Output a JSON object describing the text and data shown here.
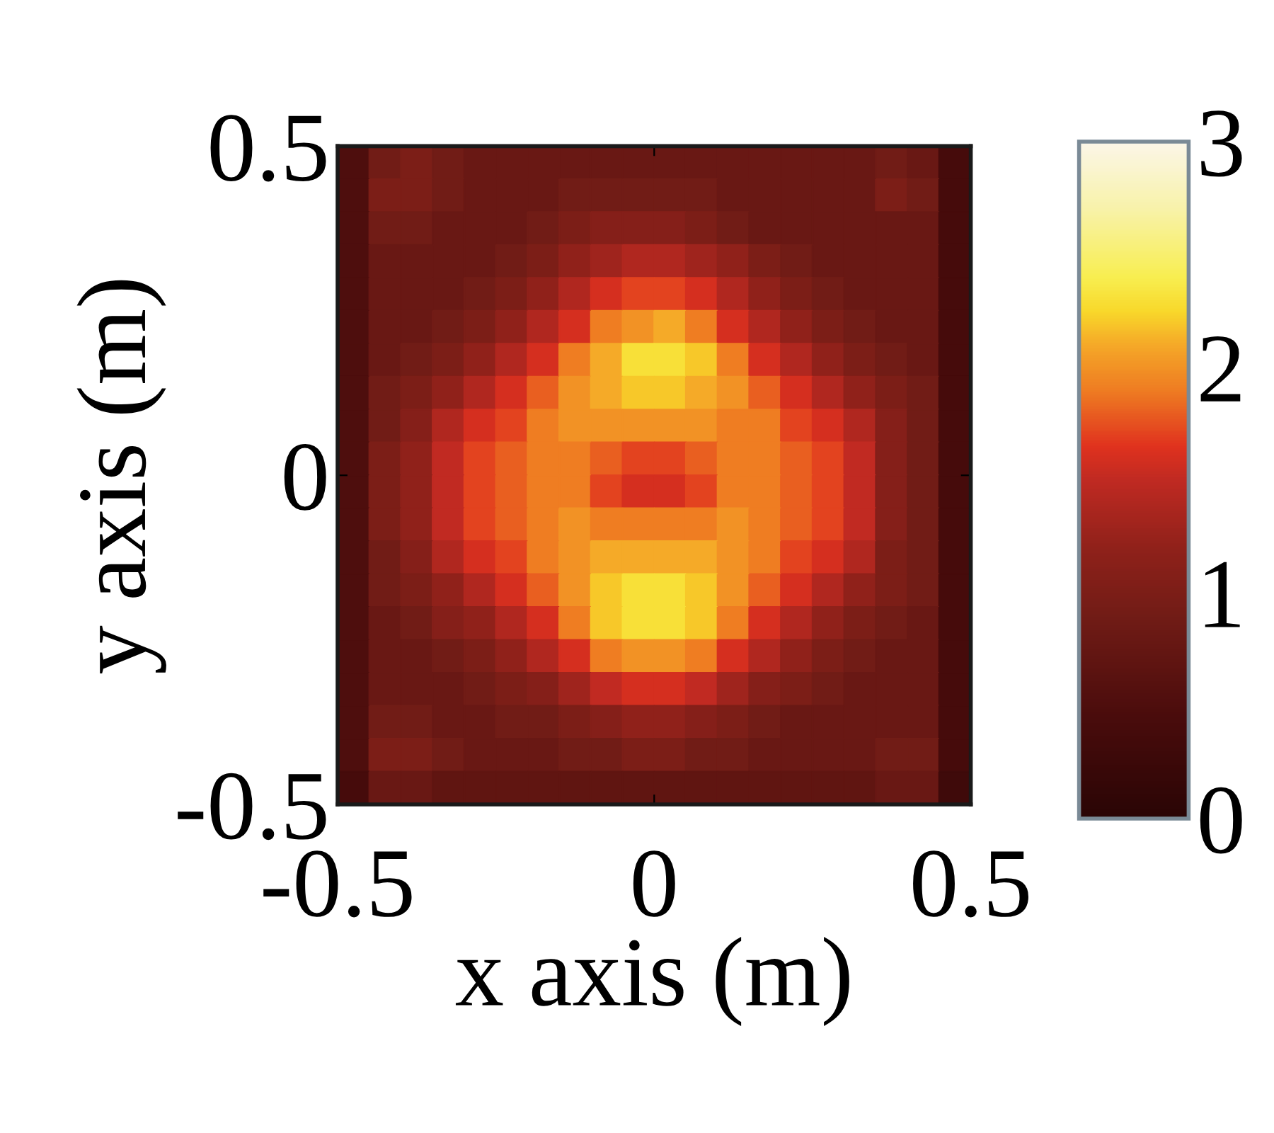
{
  "chart_data": {
    "type": "heatmap",
    "xlabel": "x axis (m)",
    "ylabel": "y axis (m)",
    "x": [
      -0.475,
      -0.425,
      -0.375,
      -0.325,
      -0.275,
      -0.225,
      -0.175,
      -0.125,
      -0.075,
      -0.025,
      0.025,
      0.075,
      0.125,
      0.175,
      0.225,
      0.275,
      0.325,
      0.375,
      0.425,
      0.475
    ],
    "y": [
      0.475,
      0.425,
      0.375,
      0.325,
      0.275,
      0.225,
      0.175,
      0.125,
      0.075,
      0.025,
      -0.025,
      -0.075,
      -0.125,
      -0.175,
      -0.225,
      -0.275,
      -0.325,
      -0.375,
      -0.425,
      -0.475
    ],
    "cells": [
      [
        0.5,
        0.9,
        1.0,
        0.9,
        0.8,
        0.8,
        0.8,
        0.8,
        0.8,
        0.8,
        0.8,
        0.8,
        0.8,
        0.8,
        0.8,
        0.8,
        0.8,
        0.9,
        0.8,
        0.4
      ],
      [
        0.5,
        1.0,
        1.0,
        0.9,
        0.8,
        0.8,
        0.8,
        0.9,
        0.9,
        0.9,
        0.9,
        0.9,
        0.8,
        0.8,
        0.8,
        0.8,
        0.8,
        1.0,
        0.9,
        0.4
      ],
      [
        0.5,
        0.9,
        0.9,
        0.8,
        0.8,
        0.8,
        0.9,
        1.0,
        1.1,
        1.1,
        1.1,
        1.0,
        0.9,
        0.8,
        0.8,
        0.8,
        0.8,
        0.8,
        0.8,
        0.4
      ],
      [
        0.5,
        0.8,
        0.8,
        0.8,
        0.8,
        0.9,
        1.0,
        1.2,
        1.3,
        1.4,
        1.4,
        1.3,
        1.2,
        1.0,
        0.9,
        0.8,
        0.8,
        0.8,
        0.8,
        0.4
      ],
      [
        0.5,
        0.8,
        0.8,
        0.8,
        0.9,
        1.0,
        1.2,
        1.4,
        1.6,
        1.7,
        1.7,
        1.6,
        1.4,
        1.2,
        1.0,
        0.9,
        0.8,
        0.8,
        0.8,
        0.4
      ],
      [
        0.5,
        0.8,
        0.8,
        0.9,
        1.0,
        1.2,
        1.4,
        1.6,
        1.9,
        2.0,
        2.1,
        1.9,
        1.6,
        1.4,
        1.2,
        1.0,
        0.9,
        0.8,
        0.8,
        0.4
      ],
      [
        0.5,
        0.8,
        0.9,
        1.0,
        1.2,
        1.4,
        1.6,
        1.9,
        2.1,
        2.3,
        2.3,
        2.2,
        1.9,
        1.6,
        1.4,
        1.2,
        1.0,
        0.9,
        0.8,
        0.4
      ],
      [
        0.5,
        0.9,
        1.0,
        1.2,
        1.4,
        1.6,
        1.8,
        2.0,
        2.1,
        2.2,
        2.2,
        2.1,
        2.0,
        1.8,
        1.6,
        1.4,
        1.2,
        1.0,
        0.9,
        0.4
      ],
      [
        0.5,
        0.9,
        1.1,
        1.4,
        1.6,
        1.7,
        1.9,
        2.0,
        2.0,
        2.0,
        2.0,
        2.0,
        1.9,
        1.9,
        1.7,
        1.6,
        1.4,
        1.1,
        0.9,
        0.4
      ],
      [
        0.5,
        1.0,
        1.2,
        1.5,
        1.7,
        1.8,
        1.9,
        1.9,
        1.8,
        1.7,
        1.7,
        1.8,
        1.9,
        1.9,
        1.8,
        1.7,
        1.5,
        1.1,
        0.9,
        0.4
      ],
      [
        0.5,
        1.0,
        1.2,
        1.5,
        1.7,
        1.8,
        1.9,
        1.9,
        1.7,
        1.6,
        1.6,
        1.7,
        1.9,
        1.9,
        1.8,
        1.7,
        1.5,
        1.1,
        0.9,
        0.4
      ],
      [
        0.5,
        1.0,
        1.2,
        1.5,
        1.7,
        1.8,
        1.9,
        2.0,
        1.9,
        1.9,
        1.9,
        1.9,
        2.0,
        1.9,
        1.8,
        1.7,
        1.5,
        1.1,
        0.9,
        0.4
      ],
      [
        0.5,
        0.9,
        1.1,
        1.4,
        1.6,
        1.7,
        1.9,
        2.0,
        2.1,
        2.1,
        2.1,
        2.1,
        2.0,
        1.9,
        1.7,
        1.6,
        1.4,
        1.0,
        0.9,
        0.4
      ],
      [
        0.5,
        0.9,
        1.0,
        1.2,
        1.4,
        1.6,
        1.8,
        2.0,
        2.2,
        2.3,
        2.3,
        2.2,
        2.0,
        1.8,
        1.6,
        1.4,
        1.2,
        1.0,
        0.9,
        0.4
      ],
      [
        0.5,
        0.8,
        0.9,
        1.1,
        1.2,
        1.4,
        1.6,
        1.9,
        2.2,
        2.3,
        2.3,
        2.2,
        1.9,
        1.6,
        1.4,
        1.2,
        1.0,
        0.9,
        0.8,
        0.4
      ],
      [
        0.5,
        0.8,
        0.8,
        0.9,
        1.0,
        1.2,
        1.4,
        1.6,
        1.9,
        2.0,
        2.0,
        1.9,
        1.6,
        1.4,
        1.2,
        1.0,
        0.9,
        0.8,
        0.8,
        0.4
      ],
      [
        0.5,
        0.8,
        0.8,
        0.8,
        0.9,
        1.0,
        1.1,
        1.3,
        1.5,
        1.6,
        1.6,
        1.5,
        1.3,
        1.1,
        1.0,
        0.9,
        0.8,
        0.8,
        0.8,
        0.4
      ],
      [
        0.5,
        0.9,
        0.9,
        0.8,
        0.8,
        0.9,
        0.9,
        1.0,
        1.1,
        1.2,
        1.2,
        1.1,
        1.0,
        0.9,
        0.8,
        0.8,
        0.8,
        0.8,
        0.8,
        0.4
      ],
      [
        0.5,
        1.0,
        1.0,
        0.9,
        0.8,
        0.8,
        0.8,
        0.9,
        0.9,
        1.0,
        1.0,
        0.9,
        0.9,
        0.8,
        0.8,
        0.8,
        0.8,
        0.9,
        0.9,
        0.4
      ],
      [
        0.4,
        0.8,
        0.8,
        0.7,
        0.7,
        0.7,
        0.7,
        0.7,
        0.7,
        0.7,
        0.7,
        0.7,
        0.7,
        0.7,
        0.7,
        0.7,
        0.7,
        0.8,
        0.8,
        0.3
      ]
    ],
    "clim": [
      0,
      3
    ],
    "cticks": [
      0,
      1,
      2,
      3
    ],
    "xlim": [
      -0.5,
      0.5
    ],
    "xticks": [
      -0.5,
      0,
      0.5
    ],
    "ylim": [
      -0.5,
      0.5
    ],
    "yticks": [
      -0.5,
      0,
      0.5
    ]
  }
}
